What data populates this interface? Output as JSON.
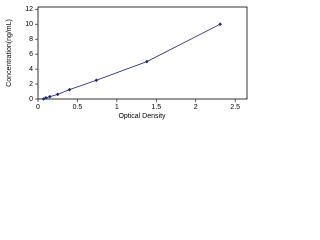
{
  "chart_data": {
    "type": "scatter",
    "x_label": "Optical Density",
    "y_label": "Concentration(ng/mL)",
    "series": [
      {
        "color": "#1a237e",
        "x": [
          0.07,
          0.1,
          0.15,
          0.25,
          0.4,
          0.74,
          1.38,
          2.31
        ],
        "values": [
          0,
          0.156,
          0.312,
          0.625,
          1.25,
          2.5,
          5,
          10
        ]
      }
    ],
    "xlim": [
      0,
      2.65
    ],
    "xticks": [
      0,
      0.5,
      1,
      1.5,
      2,
      2.5
    ],
    "ylim": [
      0,
      12.3
    ],
    "yticks": [
      0,
      2,
      4,
      6,
      8,
      10,
      12
    ],
    "fit_line": true
  }
}
